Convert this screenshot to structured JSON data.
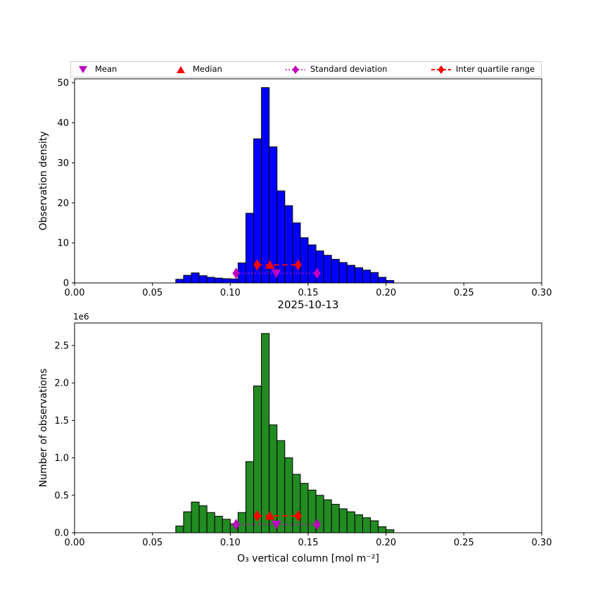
{
  "figure": {
    "title": "2025-10-13",
    "xlabel": "O₃ vertical column [mol m⁻²]",
    "offset_text": "1e6"
  },
  "legend": {
    "border_color": "#cccccc",
    "items": [
      {
        "label": "Mean",
        "marker": "triangle-down",
        "line": "none",
        "color": "#bf00bf"
      },
      {
        "label": "Median",
        "marker": "triangle-up",
        "line": "none",
        "color": "#ff0000"
      },
      {
        "label": "Standard deviation",
        "marker": "diamond",
        "line": "dotted",
        "color": "#bf00bf"
      },
      {
        "label": "Inter quartile range",
        "marker": "diamond",
        "line": "dashed",
        "color": "#ff0000"
      }
    ]
  },
  "stats": {
    "mean": 0.1295,
    "median": 0.1255,
    "std_low": 0.1037,
    "std_high": 0.1557,
    "q1": 0.1172,
    "q3": 0.1436
  },
  "chart_data": [
    {
      "type": "bar",
      "name": "observation-density-histogram",
      "ylabel": "Observation density",
      "bar_color": "#0000ff",
      "edge_color": "#000000",
      "bin_start": 0.065,
      "bin_width": 0.005,
      "values": [
        0.9,
        1.9,
        2.5,
        1.8,
        1.4,
        1.2,
        1.05,
        1.0,
        5.0,
        17.4,
        36.0,
        48.8,
        34.0,
        23.0,
        19.3,
        15.0,
        11.3,
        9.5,
        8.0,
        6.9,
        5.9,
        5.1,
        4.4,
        3.8,
        3.2,
        2.6,
        1.4,
        0.6
      ],
      "xlim": [
        0.0,
        0.3
      ],
      "ylim": [
        0,
        51
      ],
      "xticks": [
        0.0,
        0.05,
        0.1,
        0.15,
        0.2,
        0.25,
        0.3
      ],
      "xtick_labels": [
        "0.00",
        "0.05",
        "0.10",
        "0.15",
        "0.20",
        "0.25",
        "0.30"
      ],
      "yticks": [
        0,
        10,
        20,
        30,
        40,
        50
      ],
      "ytick_labels": [
        "0",
        "10",
        "20",
        "30",
        "40",
        "50"
      ],
      "marker_y": {
        "iqr_line": 4.5,
        "std_line": 2.4
      }
    },
    {
      "type": "bar",
      "name": "number-of-observations-histogram",
      "ylabel": "Number of observations",
      "y_unit": "1e6",
      "bar_color": "#228b22",
      "edge_color": "#000000",
      "bin_start": 0.065,
      "bin_width": 0.005,
      "values": [
        0.09,
        0.28,
        0.41,
        0.36,
        0.27,
        0.22,
        0.18,
        0.12,
        0.27,
        0.95,
        1.96,
        2.66,
        1.44,
        1.23,
        1.0,
        0.78,
        0.66,
        0.57,
        0.5,
        0.44,
        0.38,
        0.32,
        0.28,
        0.24,
        0.2,
        0.16,
        0.08,
        0.04
      ],
      "xlim": [
        0.0,
        0.3
      ],
      "ylim": [
        0,
        2.8
      ],
      "xticks": [
        0.0,
        0.05,
        0.1,
        0.15,
        0.2,
        0.25,
        0.3
      ],
      "xtick_labels": [
        "0.00",
        "0.05",
        "0.10",
        "0.15",
        "0.20",
        "0.25",
        "0.30"
      ],
      "yticks": [
        0,
        0.5,
        1.0,
        1.5,
        2.0,
        2.5
      ],
      "ytick_labels": [
        "0.0",
        "0.5",
        "1.0",
        "1.5",
        "2.0",
        "2.5"
      ],
      "marker_y": {
        "iqr_line": 0.225,
        "std_line": 0.11
      }
    }
  ]
}
